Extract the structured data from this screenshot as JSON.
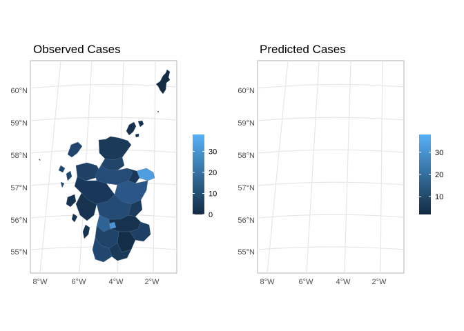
{
  "panels": [
    {
      "title": "Observed Cases",
      "legend": {
        "min": 0,
        "max": 38,
        "ticks": [
          "0",
          "10",
          "20",
          "30"
        ],
        "tick_values": [
          0,
          10,
          20,
          30
        ]
      }
    },
    {
      "title": "Predicted Cases",
      "legend": {
        "min": 2,
        "max": 38,
        "ticks": [
          "10",
          "20",
          "30"
        ],
        "tick_values": [
          10,
          20,
          30
        ]
      }
    }
  ],
  "axes": {
    "lat_labels": [
      "60°N",
      "59°N",
      "58°N",
      "57°N",
      "56°N",
      "55°N"
    ],
    "lon_labels": [
      "8°W",
      "6°W",
      "4°W",
      "2°W"
    ]
  },
  "colors": {
    "low": "#132b43",
    "high": "#56b1f7",
    "graticule": "#e6e6e6",
    "panel_border": "#b3b3b3"
  }
}
